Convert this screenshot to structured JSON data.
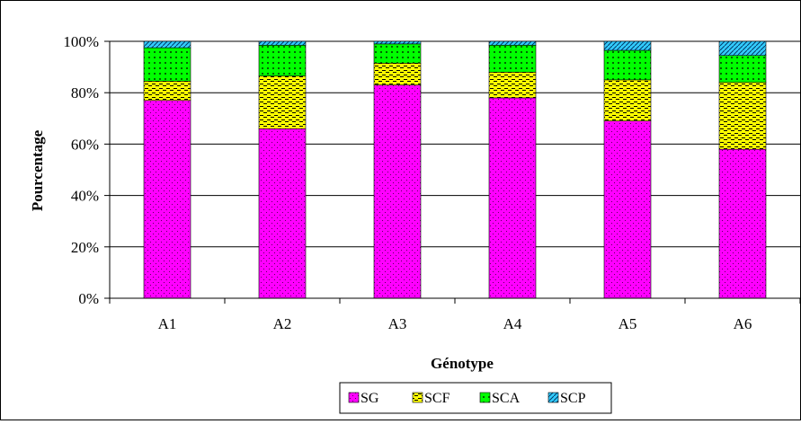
{
  "chart_data": {
    "type": "bar",
    "stacked": true,
    "percent": true,
    "title": "",
    "xlabel": "Génotype",
    "ylabel": "Pourcentage",
    "categories": [
      "A1",
      "A2",
      "A3",
      "A4",
      "A5",
      "A6"
    ],
    "y_ticks": [
      "0%",
      "20%",
      "40%",
      "60%",
      "80%",
      "100%"
    ],
    "ylim": [
      0,
      100
    ],
    "grid": true,
    "legend_position": "bottom",
    "series": [
      {
        "name": "SG",
        "color": "#ff00ff",
        "values": [
          77,
          66,
          83,
          78,
          69,
          58
        ]
      },
      {
        "name": "SCF",
        "color": "#ffff00",
        "values": [
          7.5,
          20.5,
          8.5,
          10,
          16,
          26
        ]
      },
      {
        "name": "SCA",
        "color": "#00ff00",
        "values": [
          13,
          12,
          7.5,
          10.5,
          11.5,
          10.5
        ]
      },
      {
        "name": "SCP",
        "color": "#33ccff",
        "values": [
          2.5,
          1.5,
          1,
          1.5,
          3.5,
          5.5
        ]
      }
    ]
  }
}
